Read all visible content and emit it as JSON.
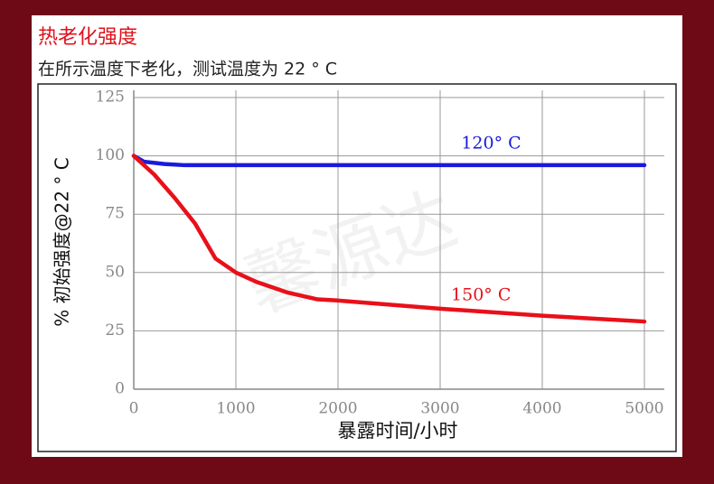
{
  "chart_data": {
    "type": "line",
    "title": "热老化强度",
    "subtitle": "在所示温度下老化，测试温度为 22 ° C",
    "x_label": "暴露时间/小时",
    "y_label": "% 初始强度@22 ° C",
    "watermark": "馨源达",
    "series": [
      {
        "name": "120° C",
        "color": "#1a1adc",
        "x": [
          0,
          100,
          300,
          500,
          1000,
          2000,
          3000,
          4000,
          5000
        ],
        "values": [
          100,
          97.5,
          96.5,
          96,
          96,
          96,
          96,
          96,
          96
        ]
      },
      {
        "name": "150° C",
        "color": "#e8101a",
        "x": [
          0,
          200,
          400,
          600,
          800,
          1000,
          1200,
          1500,
          1800,
          2000,
          3000,
          4000,
          5000
        ],
        "values": [
          100,
          92,
          82,
          71,
          56,
          50,
          46,
          41.5,
          38.5,
          38,
          34.5,
          31.5,
          29
        ]
      }
    ],
    "xlim": [
      0,
      5000
    ],
    "xticks": [
      0,
      1000,
      2000,
      3000,
      4000,
      5000
    ],
    "ylim": [
      0,
      125
    ],
    "yticks": [
      0,
      25,
      50,
      75,
      100,
      125
    ],
    "grid": true
  }
}
